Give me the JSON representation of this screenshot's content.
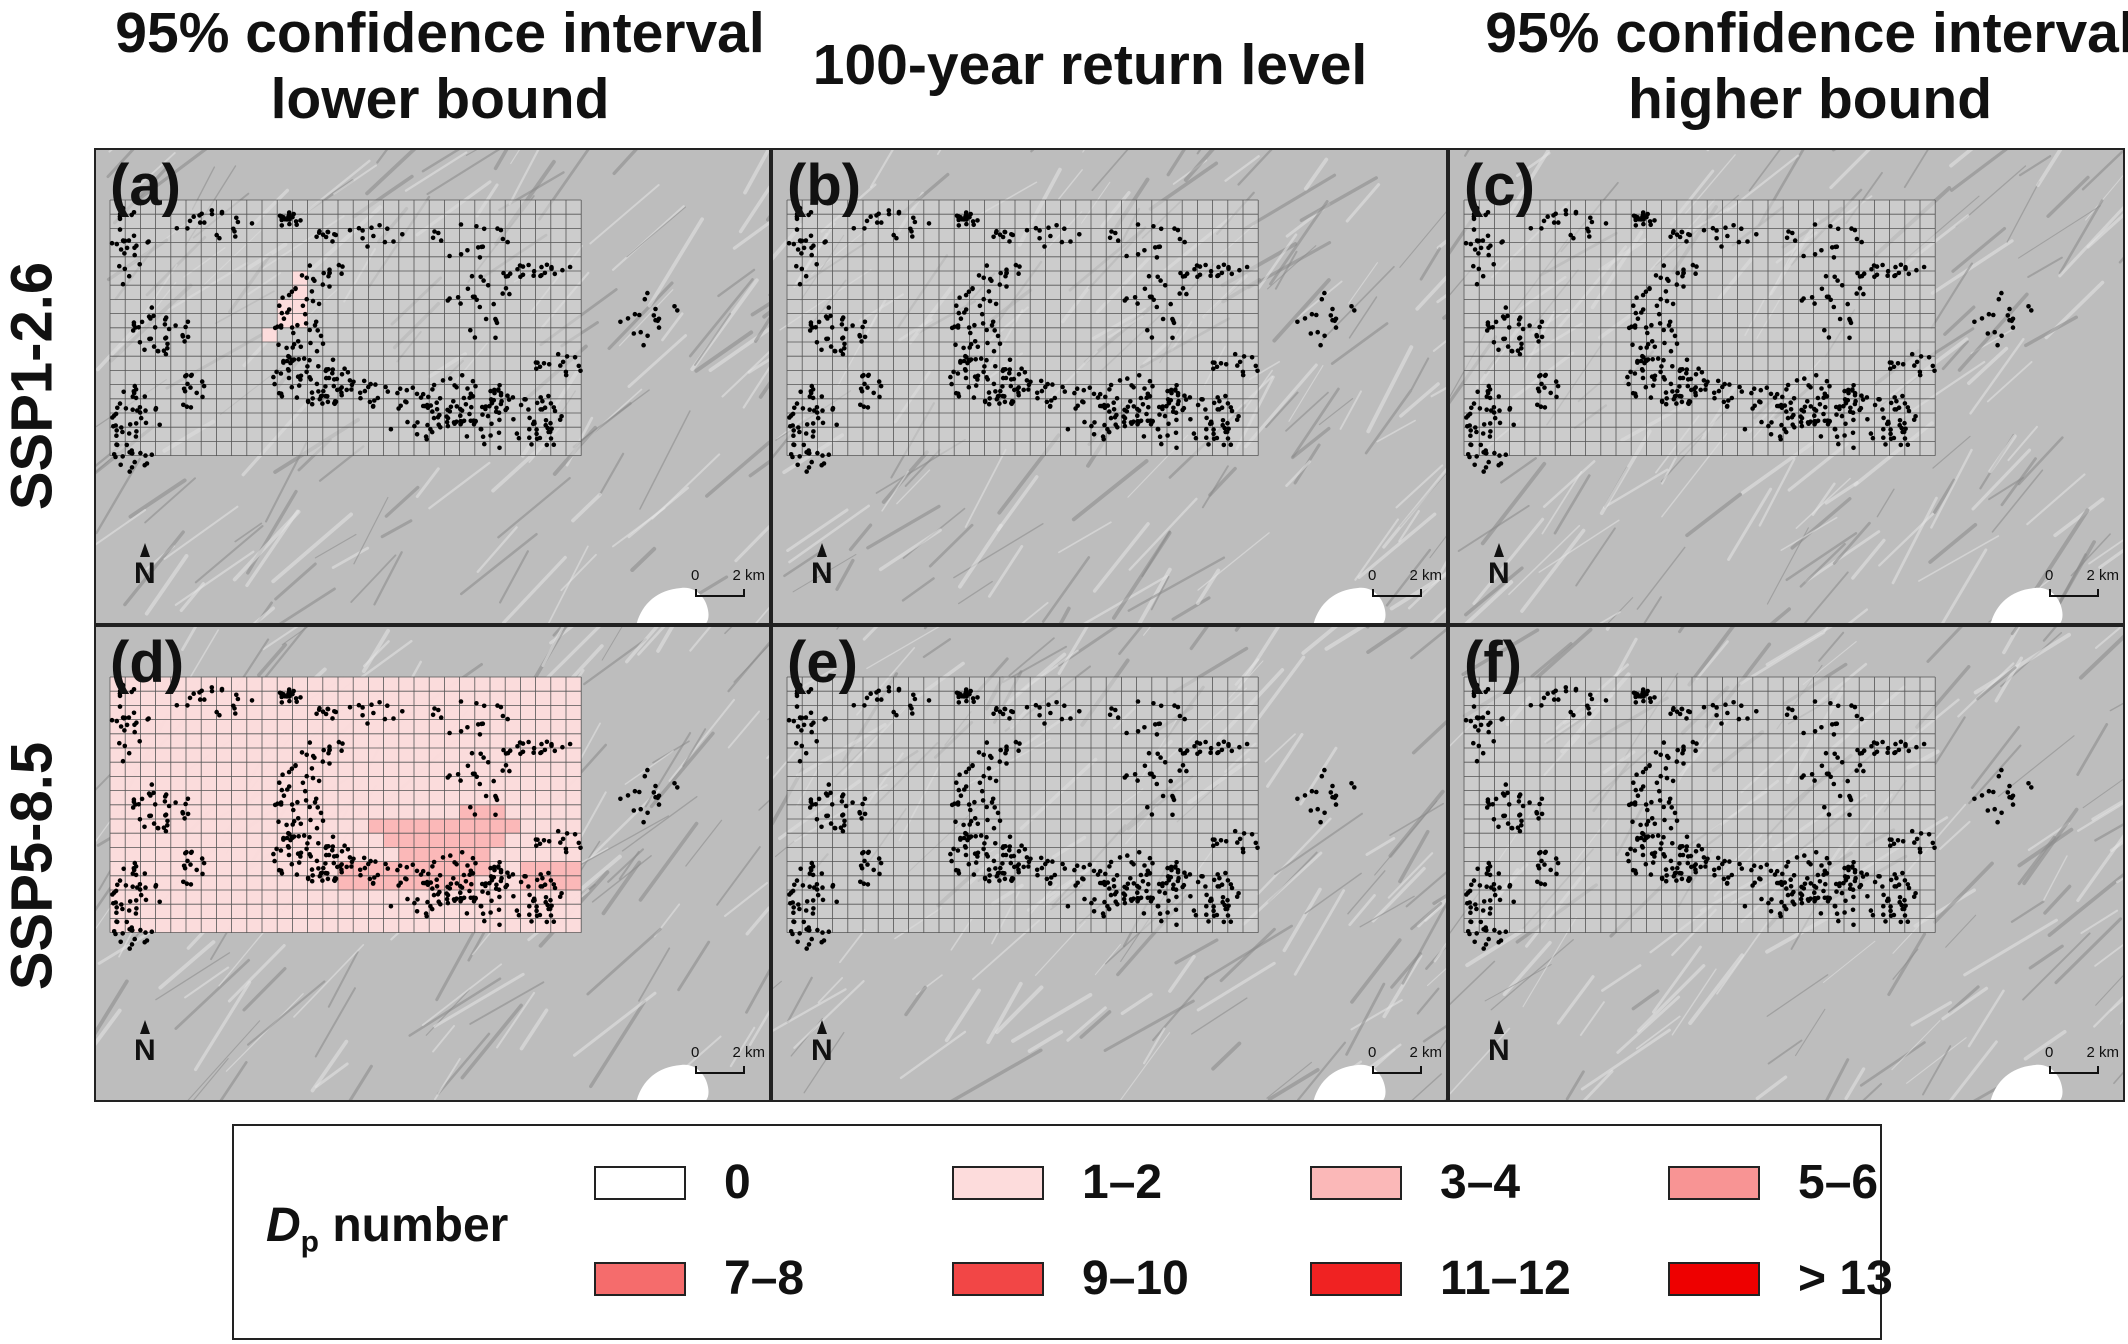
{
  "columns": [
    {
      "id": "lower",
      "lines": [
        "95% confidence interval",
        "lower bound"
      ]
    },
    {
      "id": "rl100",
      "lines": [
        "100-year return level"
      ]
    },
    {
      "id": "higher",
      "lines": [
        "95% confidence interval",
        "higher bound"
      ]
    }
  ],
  "rows": [
    {
      "id": "ssp126",
      "label": "SSP1-2.6"
    },
    {
      "id": "ssp585",
      "label": "SSP5-8.5"
    }
  ],
  "panels": [
    {
      "id": "a",
      "label": "(a)",
      "shading": "ssp126-lower"
    },
    {
      "id": "b",
      "label": "(b)",
      "shading": "none"
    },
    {
      "id": "c",
      "label": "(c)",
      "shading": "none"
    },
    {
      "id": "d",
      "label": "(d)",
      "shading": "ssp585-lower"
    },
    {
      "id": "e",
      "label": "(e)",
      "shading": "none"
    },
    {
      "id": "f",
      "label": "(f)",
      "shading": "none"
    }
  ],
  "map_elements": {
    "north_letter": "N",
    "scale_start": "0",
    "scale_end": "2 km"
  },
  "legend": {
    "title_var": "D",
    "title_sub": "p",
    "title_rest": " number",
    "classes": [
      {
        "label": "0",
        "color": "#ffffff"
      },
      {
        "label": "1–2",
        "color": "#fddcdc"
      },
      {
        "label": "3–4",
        "color": "#fbb8b8"
      },
      {
        "label": "5–6",
        "color": "#f89494"
      },
      {
        "label": "7–8",
        "color": "#f56c6c"
      },
      {
        "label": "9–10",
        "color": "#f24646"
      },
      {
        "label": "11–12",
        "color": "#f02222"
      },
      {
        "label": "> 13",
        "color": "#ee0000"
      }
    ]
  },
  "colors": {
    "grid_base": "#d9d9d9",
    "point": "#000000",
    "class_1_2": "#fddcdc",
    "class_3_4": "#fbb8b8"
  }
}
